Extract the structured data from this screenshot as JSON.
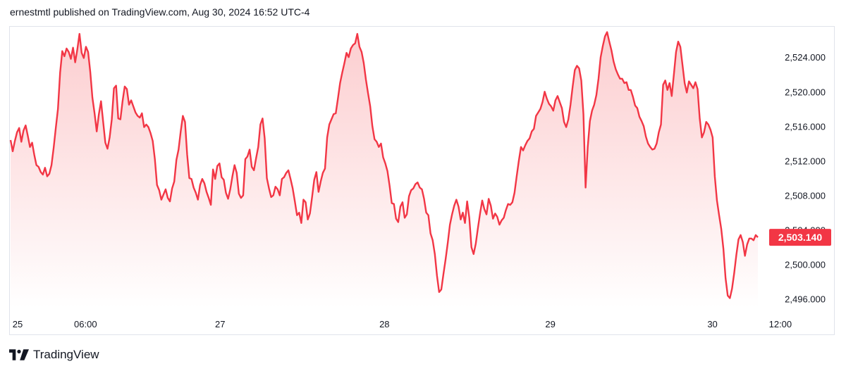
{
  "header": {
    "published_text": "ernestmtl published on TradingView.com, Aug 30, 2024 16:52 UTC-4"
  },
  "footer": {
    "brand": "TradingView",
    "logo_icon": "tradingview-logo-icon"
  },
  "colors": {
    "line": "#f23645",
    "fill_top": "#fccbcd",
    "fill_bottom": "#ffffff",
    "badge": "#f23645",
    "border": "#e0e3eb"
  },
  "chart_data": {
    "type": "area",
    "title": "",
    "xlabel": "",
    "ylabel": "",
    "ylim": [
      2495,
      2527.6
    ],
    "y_ticks": [
      "2,496.000",
      "2,500.000",
      "2,504.000",
      "2,508.000",
      "2,512.000",
      "2,516.000",
      "2,520.000",
      "2,524.000"
    ],
    "y_tick_values": [
      2496,
      2500,
      2504,
      2508,
      2512,
      2516,
      2520,
      2524
    ],
    "x_ticks": [
      "25",
      "06:00",
      "27",
      "28",
      "29",
      "30",
      "12:00"
    ],
    "x_tick_positions": [
      0.0,
      0.0834,
      0.2487,
      0.4505,
      0.6542,
      0.8533,
      0.9367
    ],
    "last_price_label": "2,503.140",
    "last_price": 2503.14,
    "grid": false,
    "series": [
      {
        "values": [
          2514.4,
          2513.1,
          2514.3,
          2515.3,
          2515.8,
          2514.2,
          2515.5,
          2516.1,
          2514.9,
          2513.6,
          2514.1,
          2512.7,
          2511.5,
          2511.3,
          2510.7,
          2510.4,
          2511.2,
          2510.2,
          2510.5,
          2511.5,
          2513.5,
          2515.8,
          2518.0,
          2522.2,
          2524.7,
          2524.1,
          2525.0,
          2524.6,
          2523.8,
          2525.1,
          2523.4,
          2524.9,
          2526.7,
          2524.5,
          2523.9,
          2525.2,
          2524.6,
          2522.3,
          2519.3,
          2517.5,
          2515.4,
          2517.4,
          2518.9,
          2516.5,
          2514.1,
          2513.4,
          2514.7,
          2516.8,
          2520.4,
          2520.7,
          2516.9,
          2516.8,
          2518.9,
          2520.6,
          2520.3,
          2518.5,
          2519.0,
          2518.3,
          2517.6,
          2517.2,
          2517.0,
          2517.5,
          2515.9,
          2516.2,
          2515.9,
          2515.2,
          2514.3,
          2512.2,
          2509.2,
          2508.6,
          2507.5,
          2508.1,
          2508.7,
          2507.7,
          2507.3,
          2508.8,
          2509.6,
          2512.1,
          2513.3,
          2515.4,
          2517.2,
          2516.5,
          2512.7,
          2510.0,
          2509.9,
          2508.9,
          2508.3,
          2507.5,
          2509.2,
          2509.9,
          2509.4,
          2508.4,
          2507.7,
          2506.9,
          2511.0,
          2509.9,
          2511.4,
          2511.7,
          2510.1,
          2509.8,
          2508.3,
          2507.6,
          2508.7,
          2510.2,
          2511.5,
          2510.6,
          2508.2,
          2507.7,
          2508.0,
          2512.2,
          2512.5,
          2513.3,
          2511.3,
          2510.9,
          2512.3,
          2513.6,
          2516.2,
          2516.9,
          2514.6,
          2510.0,
          2508.8,
          2507.8,
          2508.0,
          2509.0,
          2508.7,
          2508.0,
          2509.9,
          2510.1,
          2510.6,
          2510.9,
          2509.9,
          2508.8,
          2507.3,
          2505.7,
          2506.0,
          2504.8,
          2507.5,
          2507.2,
          2505.2,
          2505.9,
          2507.8,
          2509.8,
          2510.7,
          2508.4,
          2509.6,
          2510.6,
          2511.1,
          2514.7,
          2516.2,
          2516.8,
          2517.4,
          2517.5,
          2519.2,
          2521.0,
          2522.2,
          2523.3,
          2524.5,
          2524.0,
          2525.0,
          2525.4,
          2525.6,
          2526.7,
          2525.2,
          2524.6,
          2523.3,
          2521.4,
          2519.8,
          2518.3,
          2516.0,
          2514.5,
          2514.2,
          2513.6,
          2514.0,
          2512.4,
          2511.7,
          2510.8,
          2509.1,
          2507.1,
          2507.0,
          2505.3,
          2504.9,
          2506.7,
          2507.2,
          2505.4,
          2505.8,
          2507.9,
          2508.6,
          2508.8,
          2509.3,
          2509.5,
          2508.9,
          2508.7,
          2507.6,
          2506.0,
          2505.7,
          2503.6,
          2502.8,
          2501.2,
          2498.7,
          2496.8,
          2497.1,
          2498.9,
          2500.6,
          2502.5,
          2504.6,
          2505.8,
          2506.8,
          2507.5,
          2506.7,
          2505.2,
          2506.0,
          2504.8,
          2507.3,
          2505.4,
          2502.0,
          2501.2,
          2502.4,
          2504.2,
          2505.9,
          2507.4,
          2506.4,
          2505.8,
          2507.6,
          2506.8,
          2505.3,
          2505.9,
          2505.5,
          2504.6,
          2505.1,
          2505.4,
          2506.3,
          2507.0,
          2506.9,
          2507.2,
          2508.3,
          2510.2,
          2512.0,
          2513.6,
          2513.2,
          2513.8,
          2514.3,
          2514.6,
          2515.4,
          2515.7,
          2517.2,
          2517.6,
          2518.0,
          2518.8,
          2520.0,
          2519.2,
          2518.6,
          2518.3,
          2517.8,
          2519.0,
          2519.5,
          2518.8,
          2518.1,
          2516.5,
          2515.9,
          2516.8,
          2518.5,
          2520.6,
          2522.5,
          2523.0,
          2522.7,
          2521.3,
          2517.4,
          2508.9,
          2513.6,
          2516.6,
          2517.8,
          2518.5,
          2519.6,
          2521.5,
          2524.0,
          2525.3,
          2526.4,
          2526.9,
          2525.8,
          2524.8,
          2523.5,
          2522.6,
          2522.0,
          2521.5,
          2521.5,
          2521.0,
          2521.1,
          2520.2,
          2520.2,
          2519.4,
          2518.4,
          2518.1,
          2517.1,
          2516.6,
          2516.0,
          2514.8,
          2514.0,
          2513.6,
          2513.3,
          2513.4,
          2514.0,
          2515.3,
          2516.2,
          2520.8,
          2521.3,
          2520.2,
          2521.0,
          2519.5,
          2522.0,
          2524.6,
          2525.8,
          2525.2,
          2523.1,
          2521.0,
          2519.9,
          2521.2,
          2520.8,
          2520.4,
          2521.1,
          2520.3,
          2516.9,
          2514.7,
          2515.3,
          2516.5,
          2516.2,
          2515.6,
          2514.7,
          2510.2,
          2507.4,
          2505.7,
          2504.1,
          2501.8,
          2498.4,
          2496.4,
          2496.1,
          2497.2,
          2499.0,
          2501.1,
          2502.9,
          2503.4,
          2502.6,
          2501.0,
          2502.3,
          2503.0,
          2503.0,
          2502.8,
          2503.4,
          2503.14
        ]
      }
    ]
  }
}
